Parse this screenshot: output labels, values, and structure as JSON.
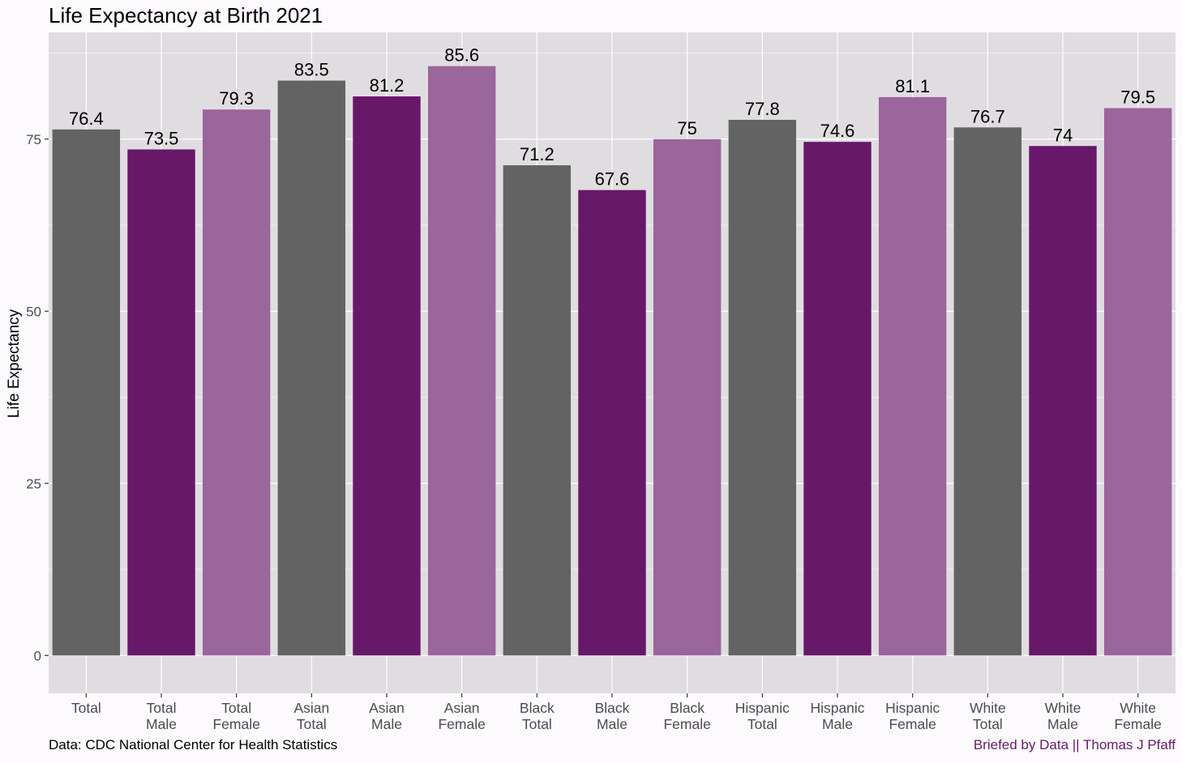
{
  "chart_data": {
    "type": "bar",
    "title": "Life Expectancy at Birth 2021",
    "xlabel": "",
    "ylabel": "Life Expectancy",
    "ylim": [
      -5.5,
      90.5
    ],
    "yticks": [
      0,
      25,
      50,
      75
    ],
    "grid": true,
    "legend": "none",
    "categories": [
      [
        "Total"
      ],
      [
        "Total",
        "Male"
      ],
      [
        "Total",
        "Female"
      ],
      [
        "Asian",
        "Total"
      ],
      [
        "Asian",
        "Male"
      ],
      [
        "Asian",
        "Female"
      ],
      [
        "Black",
        "Total"
      ],
      [
        "Black",
        "Male"
      ],
      [
        "Black",
        "Female"
      ],
      [
        "Hispanic",
        "Total"
      ],
      [
        "Hispanic",
        "Male"
      ],
      [
        "Hispanic",
        "Female"
      ],
      [
        "White",
        "Total"
      ],
      [
        "White",
        "Male"
      ],
      [
        "White",
        "Female"
      ]
    ],
    "values": [
      76.4,
      73.5,
      79.3,
      83.5,
      81.2,
      85.6,
      71.2,
      67.6,
      75,
      77.8,
      74.6,
      81.1,
      76.7,
      74,
      79.5
    ],
    "value_labels": [
      "76.4",
      "73.5",
      "79.3",
      "83.5",
      "81.2",
      "85.6",
      "71.2",
      "67.6",
      "75",
      "77.8",
      "74.6",
      "81.1",
      "76.7",
      "74",
      "79.5"
    ],
    "group_of_bar": [
      "total",
      "male",
      "female",
      "total",
      "male",
      "female",
      "total",
      "male",
      "female",
      "total",
      "male",
      "female",
      "total",
      "male",
      "female"
    ]
  },
  "colors": {
    "total": "#636363",
    "male": "#681868",
    "female": "#9b669b",
    "panel": "#e0dde0",
    "grid": "#ffffff",
    "text": "#000000",
    "tick_text": "#4d4d4d",
    "attribution": "#681868"
  },
  "captions": {
    "source": "Data: CDC National Center for Health Statistics",
    "attribution": "Briefed by Data || Thomas J Pfaff"
  }
}
